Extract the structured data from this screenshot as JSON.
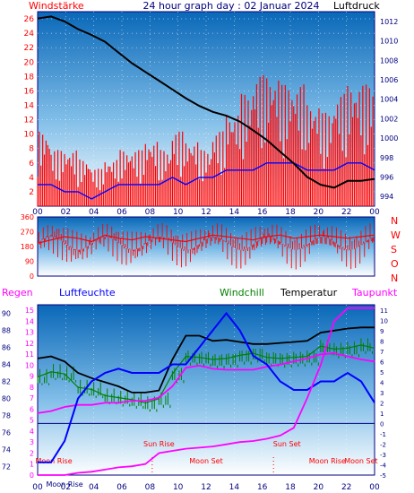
{
  "header": {
    "left": "Windstärke",
    "center": "24 hour graph day : 02 Januar 2024",
    "right": "Luftdruck"
  },
  "bottom_header": {
    "regen": "Regen",
    "luftfeuchte": "Luftfeuchte",
    "windchill": "Windchill",
    "temperatur": "Temperatur",
    "taupunkt": "Taupunkt"
  },
  "colors": {
    "wind": "#ff0000",
    "gust_blue": "#0000ff",
    "pressure": "#000000",
    "humidity": "#0000ff",
    "windchill": "#008000",
    "temperature": "#000000",
    "dewpoint": "#ff00ff",
    "rain": "#ff00ff",
    "zero_line": "#000080",
    "frame": "#000080"
  },
  "chart_data": [
    {
      "type": "line",
      "title": "24 hour graph day : 02 Januar 2024",
      "x_ticks": [
        "00",
        "02",
        "04",
        "06",
        "08",
        "10",
        "12",
        "14",
        "16",
        "18",
        "20",
        "22",
        "00"
      ],
      "y_left_label": "Windstärke",
      "y_left_ticks": [
        "2",
        "4",
        "6",
        "8",
        "10",
        "12",
        "14",
        "16",
        "18",
        "20",
        "22",
        "24",
        "26"
      ],
      "y_left_range": [
        0,
        27
      ],
      "y_right_label": "Luftdruck",
      "y_right_ticks": [
        "994",
        "996",
        "998",
        "1000",
        "1002",
        "1004",
        "1006",
        "1008",
        "1010",
        "1012"
      ],
      "y_right_range": [
        993,
        1013
      ],
      "x_range_hours": [
        23,
        48
      ],
      "series": [
        {
          "name": "Luftdruck",
          "points": [
            [
              23,
              1012.3
            ],
            [
              24,
              1012.5
            ],
            [
              25,
              1012.0
            ],
            [
              26,
              1011.2
            ],
            [
              27,
              1010.6
            ],
            [
              28,
              1009.9
            ],
            [
              29,
              1008.8
            ],
            [
              30,
              1007.7
            ],
            [
              31,
              1006.8
            ],
            [
              32,
              1005.9
            ],
            [
              33,
              1005.0
            ],
            [
              34,
              1004.1
            ],
            [
              35,
              1003.3
            ],
            [
              36,
              1002.7
            ],
            [
              37,
              1002.3
            ],
            [
              38,
              1001.7
            ],
            [
              39,
              1000.8
            ],
            [
              40,
              999.8
            ],
            [
              41,
              998.6
            ],
            [
              42,
              997.4
            ],
            [
              43,
              996.0
            ],
            [
              44,
              995.2
            ],
            [
              45,
              994.9
            ],
            [
              46,
              995.6
            ],
            [
              47,
              995.6
            ],
            [
              48,
              995.8
            ]
          ]
        },
        {
          "name": "Windstärke",
          "points": [
            [
              23,
              8
            ],
            [
              24,
              6
            ],
            [
              25,
              6
            ],
            [
              26,
              5
            ],
            [
              27,
              4
            ],
            [
              28,
              5
            ],
            [
              29,
              6
            ],
            [
              30,
              6
            ],
            [
              31,
              7
            ],
            [
              32,
              6
            ],
            [
              33,
              8
            ],
            [
              34,
              7
            ],
            [
              35,
              6
            ],
            [
              36,
              8
            ],
            [
              37,
              10
            ],
            [
              38,
              12
            ],
            [
              39,
              14
            ],
            [
              40,
              14
            ],
            [
              41,
              13
            ],
            [
              42,
              13
            ],
            [
              43,
              11
            ],
            [
              44,
              10
            ],
            [
              45,
              12
            ],
            [
              46,
              13
            ],
            [
              47,
              13
            ],
            [
              48,
              12
            ]
          ]
        },
        {
          "name": "Böen",
          "points": [
            [
              23,
              3
            ],
            [
              24,
              3
            ],
            [
              25,
              2
            ],
            [
              26,
              2
            ],
            [
              27,
              1
            ],
            [
              28,
              2
            ],
            [
              29,
              3
            ],
            [
              30,
              3
            ],
            [
              31,
              3
            ],
            [
              32,
              3
            ],
            [
              33,
              4
            ],
            [
              34,
              3
            ],
            [
              35,
              4
            ],
            [
              36,
              4
            ],
            [
              37,
              5
            ],
            [
              38,
              5
            ],
            [
              39,
              5
            ],
            [
              40,
              6
            ],
            [
              41,
              6
            ],
            [
              42,
              6
            ],
            [
              43,
              5
            ],
            [
              44,
              5
            ],
            [
              45,
              5
            ],
            [
              46,
              6
            ],
            [
              47,
              6
            ],
            [
              48,
              5
            ]
          ]
        }
      ]
    },
    {
      "type": "line",
      "x_ticks": [
        "00",
        "02",
        "04",
        "06",
        "08",
        "10",
        "12",
        "14",
        "16",
        "18",
        "20",
        "22",
        "00"
      ],
      "y_left_ticks": [
        "0",
        "90",
        "180",
        "270",
        "360"
      ],
      "y_left_range": [
        0,
        360
      ],
      "y_right_ticks": [
        "N",
        "W",
        "S",
        "O",
        "N"
      ],
      "series": [
        {
          "name": "Windrichtung",
          "points": [
            [
              23,
              200
            ],
            [
              24,
              220
            ],
            [
              25,
              240
            ],
            [
              26,
              230
            ],
            [
              27,
              210
            ],
            [
              28,
              250
            ],
            [
              29,
              230
            ],
            [
              30,
              220
            ],
            [
              31,
              240
            ],
            [
              32,
              230
            ],
            [
              33,
              220
            ],
            [
              34,
              210
            ],
            [
              35,
              230
            ],
            [
              36,
              250
            ],
            [
              37,
              240
            ],
            [
              38,
              230
            ],
            [
              39,
              220
            ],
            [
              40,
              240
            ],
            [
              41,
              250
            ],
            [
              42,
              230
            ],
            [
              43,
              240
            ],
            [
              44,
              250
            ],
            [
              45,
              240
            ],
            [
              46,
              230
            ],
            [
              47,
              240
            ],
            [
              48,
              250
            ]
          ]
        }
      ]
    },
    {
      "type": "line",
      "x_ticks": [
        "00",
        "02",
        "04",
        "06",
        "08",
        "10",
        "12",
        "14",
        "16",
        "18",
        "20",
        "22",
        "00"
      ],
      "y_far_left_label": "Regen",
      "y_far_left_ticks": [
        "72",
        "74",
        "76",
        "78",
        "80",
        "82",
        "84",
        "86",
        "88",
        "90"
      ],
      "y_far_left_range": [
        71,
        91
      ],
      "y_left_label": "Luftfeuchte",
      "y_left_ticks": [
        "0",
        "1",
        "2",
        "3",
        "4",
        "5",
        "6",
        "7",
        "8",
        "9",
        "10",
        "11",
        "12",
        "13",
        "14",
        "15"
      ],
      "y_left_range": [
        0,
        15.5
      ],
      "y_right_ticks": [
        "-5",
        "-4",
        "-3",
        "-2",
        "-1",
        "0",
        "1",
        "2",
        "3",
        "4",
        "5",
        "6",
        "7",
        "8",
        "9",
        "10",
        "11"
      ],
      "y_right_range": [
        -5,
        11.5
      ],
      "annotations": [
        "Moon Rise",
        "Sun Rise",
        "Moon Set",
        "Sun Set",
        "Moon Rise",
        "Moon Set",
        "Moon Rise"
      ],
      "series": [
        {
          "name": "Luftfeuchte",
          "points": [
            [
              23,
              72.5
            ],
            [
              24,
              72.5
            ],
            [
              25,
              75
            ],
            [
              26,
              80
            ],
            [
              27,
              82
            ],
            [
              28,
              83
            ],
            [
              29,
              83.5
            ],
            [
              30,
              83
            ],
            [
              31,
              83
            ],
            [
              32,
              83
            ],
            [
              33,
              84
            ],
            [
              34,
              84
            ],
            [
              35,
              86
            ],
            [
              36,
              88
            ],
            [
              37,
              90
            ],
            [
              38,
              88
            ],
            [
              39,
              85
            ],
            [
              40,
              84
            ],
            [
              41,
              82
            ],
            [
              42,
              81
            ],
            [
              43,
              81
            ],
            [
              44,
              82
            ],
            [
              45,
              82
            ],
            [
              46,
              83
            ],
            [
              47,
              82
            ],
            [
              48,
              79.5
            ]
          ]
        },
        {
          "name": "Temperatur",
          "points": [
            [
              23,
              6.3
            ],
            [
              24,
              6.5
            ],
            [
              25,
              6.0
            ],
            [
              26,
              4.9
            ],
            [
              27,
              4.4
            ],
            [
              28,
              4.0
            ],
            [
              29,
              3.6
            ],
            [
              30,
              3.0
            ],
            [
              31,
              3.0
            ],
            [
              32,
              3.2
            ],
            [
              33,
              6.2
            ],
            [
              34,
              8.5
            ],
            [
              35,
              8.5
            ],
            [
              36,
              8.0
            ],
            [
              37,
              8.1
            ],
            [
              38,
              7.9
            ],
            [
              39,
              7.7
            ],
            [
              40,
              7.7
            ],
            [
              41,
              7.8
            ],
            [
              42,
              7.9
            ],
            [
              43,
              8.0
            ],
            [
              44,
              8.8
            ],
            [
              45,
              9.0
            ],
            [
              46,
              9.2
            ],
            [
              47,
              9.3
            ],
            [
              48,
              9.3
            ]
          ]
        },
        {
          "name": "Windchill",
          "points": [
            [
              23,
              4.5
            ],
            [
              24,
              5.0
            ],
            [
              25,
              4.8
            ],
            [
              26,
              3.5
            ],
            [
              27,
              3.3
            ],
            [
              28,
              2.7
            ],
            [
              29,
              2.5
            ],
            [
              30,
              2.3
            ],
            [
              31,
              2.0
            ],
            [
              32,
              2.4
            ],
            [
              33,
              4.8
            ],
            [
              34,
              6.5
            ],
            [
              35,
              6.4
            ],
            [
              36,
              6.2
            ],
            [
              37,
              6.3
            ],
            [
              38,
              6.6
            ],
            [
              39,
              6.8
            ],
            [
              40,
              6.4
            ],
            [
              41,
              6.3
            ],
            [
              42,
              6.4
            ],
            [
              43,
              6.5
            ],
            [
              44,
              7.5
            ],
            [
              45,
              7.2
            ],
            [
              46,
              7.3
            ],
            [
              47,
              7.6
            ],
            [
              48,
              7.3
            ]
          ]
        },
        {
          "name": "Taupunkt",
          "points": [
            [
              23,
              1.0
            ],
            [
              24,
              1.2
            ],
            [
              25,
              1.6
            ],
            [
              26,
              1.8
            ],
            [
              27,
              1.8
            ],
            [
              28,
              2.0
            ],
            [
              29,
              2.0
            ],
            [
              30,
              2.2
            ],
            [
              31,
              2.2
            ],
            [
              32,
              2.5
            ],
            [
              33,
              3.6
            ],
            [
              34,
              5.4
            ],
            [
              35,
              5.6
            ],
            [
              36,
              5.3
            ],
            [
              37,
              5.2
            ],
            [
              38,
              5.2
            ],
            [
              39,
              5.2
            ],
            [
              40,
              5.5
            ],
            [
              41,
              5.7
            ],
            [
              42,
              6.0
            ],
            [
              43,
              6.3
            ],
            [
              44,
              6.7
            ],
            [
              45,
              6.8
            ],
            [
              46,
              6.5
            ],
            [
              47,
              6.2
            ],
            [
              48,
              6.0
            ]
          ]
        },
        {
          "name": "Regen",
          "points": [
            [
              23,
              0.0
            ],
            [
              25,
              0.0
            ],
            [
              26,
              0.2
            ],
            [
              27,
              0.3
            ],
            [
              28,
              0.5
            ],
            [
              29,
              0.7
            ],
            [
              30,
              0.8
            ],
            [
              31,
              1.0
            ],
            [
              32,
              2.0
            ],
            [
              33,
              2.2
            ],
            [
              34,
              2.4
            ],
            [
              35,
              2.5
            ],
            [
              36,
              2.6
            ],
            [
              37,
              2.8
            ],
            [
              38,
              3.0
            ],
            [
              39,
              3.1
            ],
            [
              40,
              3.3
            ],
            [
              41,
              3.6
            ],
            [
              42,
              4.3
            ],
            [
              43,
              7.0
            ],
            [
              44,
              10.0
            ],
            [
              45,
              14.0
            ],
            [
              46,
              15.2
            ],
            [
              47,
              15.2
            ],
            [
              48,
              15.2
            ]
          ]
        }
      ]
    }
  ]
}
